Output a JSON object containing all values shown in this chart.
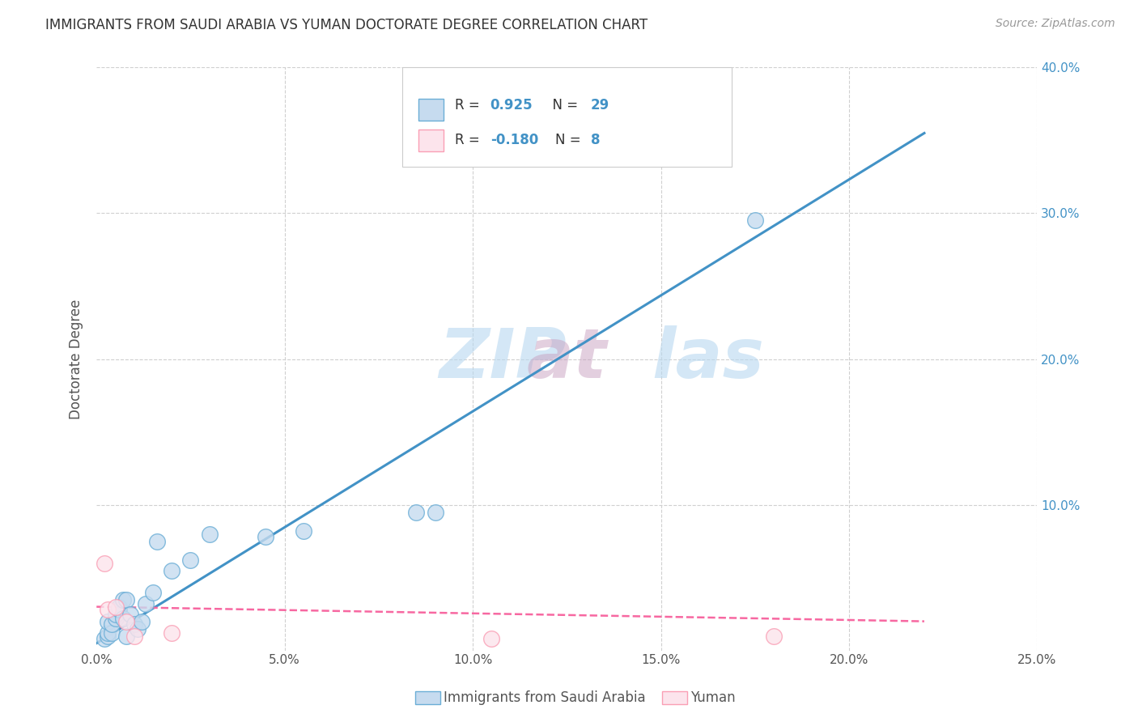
{
  "title": "IMMIGRANTS FROM SAUDI ARABIA VS YUMAN DOCTORATE DEGREE CORRELATION CHART",
  "source": "Source: ZipAtlas.com",
  "ylabel": "Doctorate Degree",
  "xlim": [
    0.0,
    0.25
  ],
  "ylim": [
    0.0,
    0.4
  ],
  "xticks": [
    0.0,
    0.05,
    0.1,
    0.15,
    0.2,
    0.25
  ],
  "yticks": [
    0.0,
    0.1,
    0.2,
    0.3,
    0.4
  ],
  "xtick_labels": [
    "0.0%",
    "5.0%",
    "10.0%",
    "15.0%",
    "20.0%",
    "25.0%"
  ],
  "right_ytick_labels": [
    "",
    "10.0%",
    "20.0%",
    "30.0%",
    "40.0%"
  ],
  "blue_scatter_x": [
    0.002,
    0.003,
    0.003,
    0.003,
    0.004,
    0.004,
    0.005,
    0.005,
    0.006,
    0.006,
    0.007,
    0.007,
    0.008,
    0.008,
    0.009,
    0.01,
    0.011,
    0.012,
    0.013,
    0.015,
    0.016,
    0.02,
    0.025,
    0.03,
    0.045,
    0.055,
    0.085,
    0.09,
    0.175
  ],
  "blue_scatter_y": [
    0.008,
    0.01,
    0.012,
    0.02,
    0.012,
    0.018,
    0.022,
    0.025,
    0.028,
    0.03,
    0.022,
    0.035,
    0.01,
    0.035,
    0.025,
    0.018,
    0.015,
    0.02,
    0.032,
    0.04,
    0.075,
    0.055,
    0.062,
    0.08,
    0.078,
    0.082,
    0.095,
    0.095,
    0.295
  ],
  "pink_scatter_x": [
    0.002,
    0.003,
    0.005,
    0.008,
    0.01,
    0.02,
    0.105,
    0.18
  ],
  "pink_scatter_y": [
    0.06,
    0.028,
    0.03,
    0.02,
    0.01,
    0.012,
    0.008,
    0.01
  ],
  "blue_line_x": [
    0.0,
    0.22
  ],
  "blue_line_y": [
    0.005,
    0.355
  ],
  "pink_line_x": [
    0.0,
    0.22
  ],
  "pink_line_y": [
    0.03,
    0.02
  ],
  "blue_color": "#6baed6",
  "blue_fill": "#c6dbef",
  "pink_color": "#fa9fb5",
  "pink_fill": "#fce4ec",
  "blue_R": "0.925",
  "blue_N": "29",
  "pink_R": "-0.180",
  "pink_N": "8",
  "legend_label_blue": "Immigrants from Saudi Arabia",
  "legend_label_pink": "Yuman",
  "watermark_part1": "ZIP",
  "watermark_part2": "at",
  "watermark_part3": "las",
  "background_color": "#ffffff",
  "grid_color": "#d0d0d0"
}
